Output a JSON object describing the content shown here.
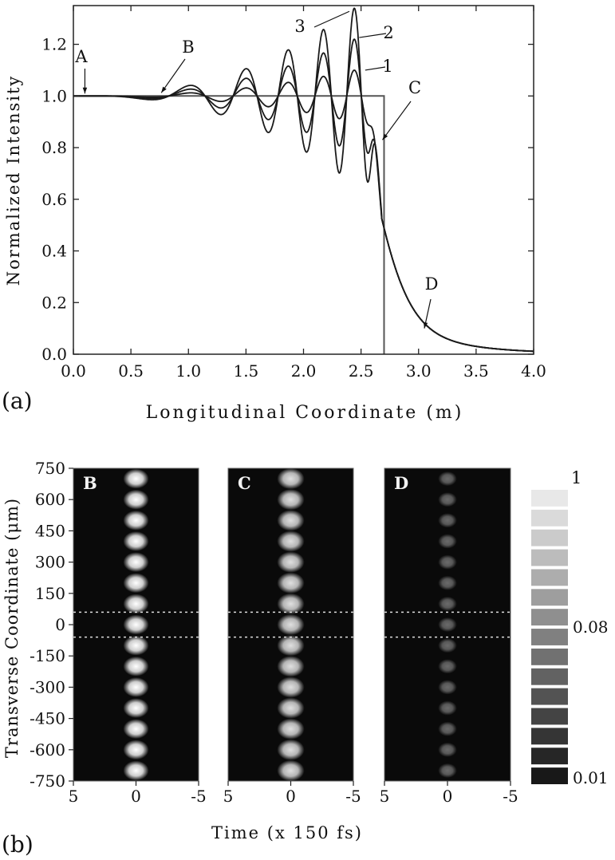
{
  "chart_data": [
    {
      "panel_label": "(a)",
      "type": "line",
      "xlabel": "Longitudinal Coordinate (m)",
      "ylabel": "Normalized Intensity",
      "xlim": [
        0,
        4
      ],
      "ylim": [
        0,
        1.35
      ],
      "xticks": [
        "0.0",
        "0.5",
        "1.0",
        "1.5",
        "2.0",
        "2.5",
        "3.0",
        "3.5",
        "4.0"
      ],
      "yticks": [
        "0.0",
        "0.2",
        "0.4",
        "0.6",
        "0.8",
        "1.0",
        "1.2"
      ],
      "step_edge_x": 2.7,
      "series": [
        {
          "name": "1",
          "oscillation_peak": 1.1
        },
        {
          "name": "2",
          "oscillation_peak": 1.22
        },
        {
          "name": "3",
          "oscillation_peak": 1.34
        }
      ],
      "annotations": [
        {
          "text": "A",
          "x": 0.1,
          "y": 1.0
        },
        {
          "text": "B",
          "x": 0.75,
          "y": 1.0
        },
        {
          "text": "C",
          "x": 2.7,
          "y": 0.83
        },
        {
          "text": "D",
          "x": 3.05,
          "y": 0.1
        },
        {
          "text": "3",
          "x": 2.44,
          "y": 1.34
        },
        {
          "text": "2",
          "x": 2.47,
          "y": 1.22
        },
        {
          "text": "1",
          "x": 2.55,
          "y": 1.1
        }
      ]
    },
    {
      "panel_label": "(b)",
      "type": "heatmap",
      "xlabel": "Time (x 150 fs)",
      "ylabel": "Transverse Coordinate (μm)",
      "xlim": [
        5,
        -5
      ],
      "ylim": [
        -750,
        750
      ],
      "xticks": [
        "5",
        "0",
        "-5"
      ],
      "yticks": [
        "750",
        "600",
        "450",
        "300",
        "150",
        "0",
        "-150",
        "-300",
        "-450",
        "-600",
        "-750"
      ],
      "dashed_lines_y": [
        60,
        -60
      ],
      "panels": [
        {
          "label": "B",
          "spot_count": 15,
          "brightness": 1.0,
          "spot_radius_um": 30
        },
        {
          "label": "C",
          "spot_count": 15,
          "brightness": 0.88,
          "spot_radius_um": 32
        },
        {
          "label": "D",
          "spot_count": 15,
          "brightness": 0.42,
          "spot_radius_um": 22
        }
      ],
      "colorbar": {
        "labels": [
          "1",
          "0.08",
          "0.01"
        ],
        "grays": [
          "#e8e8e8",
          "#dadada",
          "#cbcbcb",
          "#bcbcbc",
          "#adadad",
          "#9e9e9e",
          "#8f8f8f",
          "#808080",
          "#717171",
          "#626262",
          "#535353",
          "#444444",
          "#353535",
          "#262626",
          "#181818"
        ]
      }
    }
  ]
}
